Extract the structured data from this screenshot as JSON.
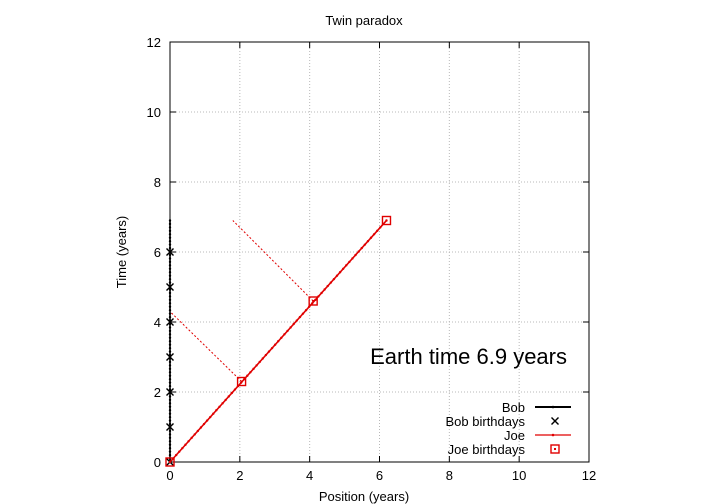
{
  "chart_data": {
    "type": "line",
    "title": "Twin paradox",
    "xlabel": "Position (years)",
    "ylabel": "Time (years)",
    "xlim": [
      0,
      12
    ],
    "ylim": [
      0,
      12
    ],
    "xticks": [
      0,
      2,
      4,
      6,
      8,
      10,
      12
    ],
    "yticks": [
      0,
      2,
      4,
      6,
      8,
      10,
      12
    ],
    "grid": true,
    "legend_position": "bottom-right",
    "annotation": "Earth time  6.9 years",
    "colors": {
      "bob": "#000000",
      "joe": "#e00000"
    },
    "series": [
      {
        "name": "Bob",
        "kind": "line-dots",
        "x": [
          0,
          0
        ],
        "y": [
          0,
          6.9
        ]
      },
      {
        "name": "Bob birthdays",
        "kind": "markers-x",
        "x": [
          0,
          0,
          0,
          0,
          0,
          0,
          0
        ],
        "y": [
          0,
          1,
          2,
          3,
          4,
          5,
          6
        ]
      },
      {
        "name": "Joe",
        "kind": "line-dots",
        "x": [
          0,
          6.2
        ],
        "y": [
          0,
          6.9
        ]
      },
      {
        "name": "Joe birthdays",
        "kind": "markers-square",
        "x": [
          0,
          2.05,
          4.1,
          6.2
        ],
        "y": [
          0,
          2.3,
          4.6,
          6.9
        ]
      }
    ],
    "simultaneity_lines": [
      {
        "x": [
          2.05,
          0
        ],
        "y": [
          2.3,
          4.3
        ]
      },
      {
        "x": [
          4.1,
          1.8
        ],
        "y": [
          4.6,
          6.9
        ]
      }
    ]
  }
}
